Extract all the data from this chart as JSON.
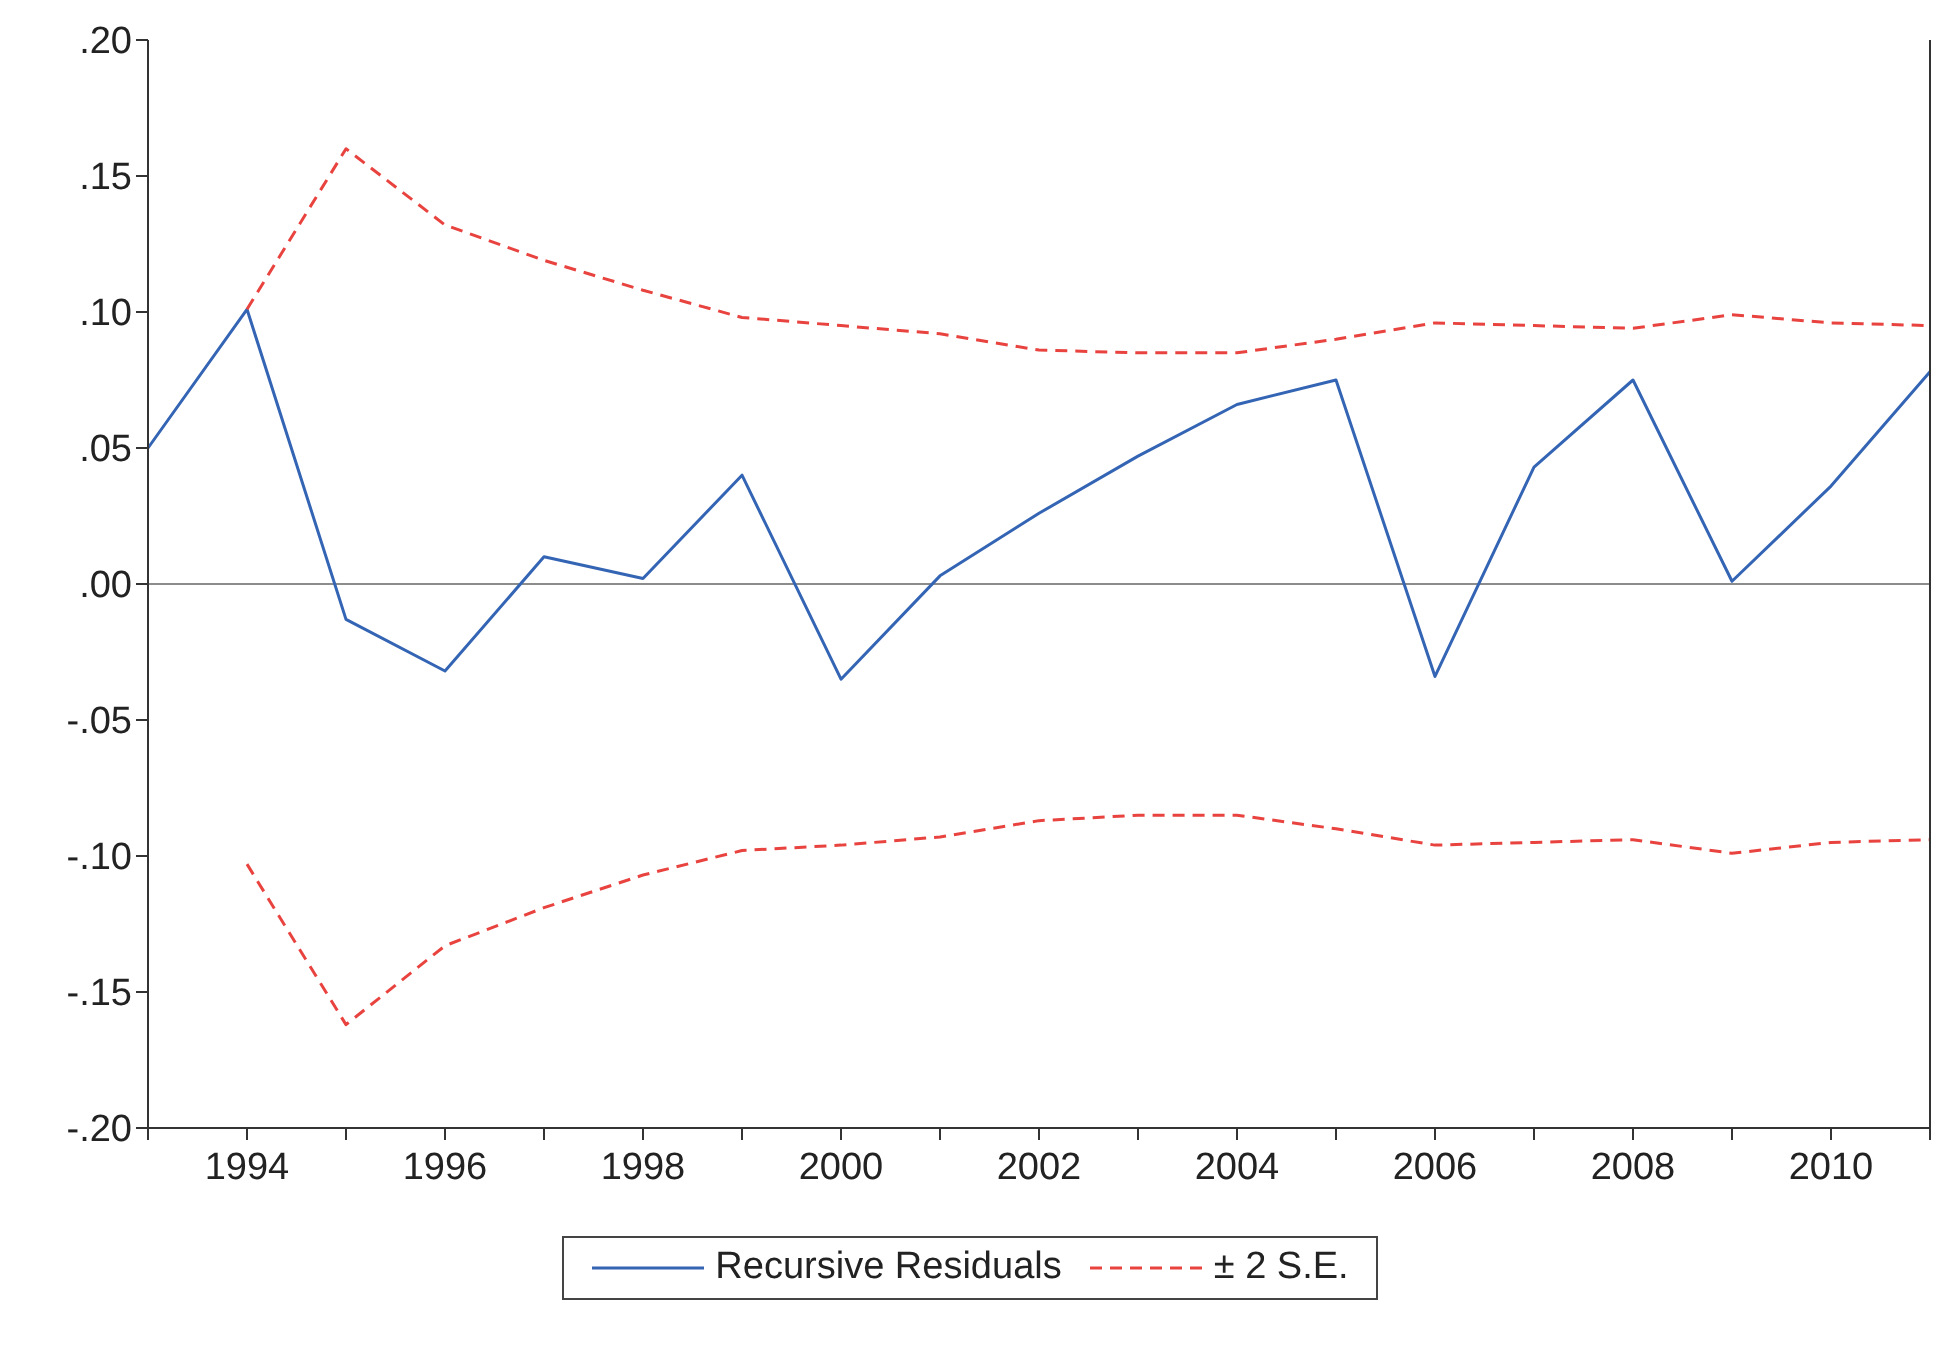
{
  "chart_data": {
    "type": "line",
    "categories": [
      null,
      "1994",
      null,
      "1996",
      null,
      "1998",
      null,
      "2000",
      null,
      "2002",
      null,
      "2004",
      null,
      "2006",
      null,
      "2008",
      null,
      "2010",
      null
    ],
    "series": [
      {
        "name": "Recursive Residuals",
        "color": "#3465b4",
        "line_style": "solid",
        "values": [
          0.05,
          0.101,
          -0.013,
          -0.032,
          0.01,
          0.002,
          0.04,
          -0.035,
          0.003,
          0.026,
          0.047,
          0.066,
          0.075,
          -0.034,
          0.043,
          0.075,
          0.001,
          0.036,
          0.078
        ]
      },
      {
        "name": "± 2 S.E.",
        "color": "#e8433f",
        "line_style": "dashed",
        "values": [
          null,
          0.101,
          0.16,
          0.132,
          0.119,
          0.108,
          0.098,
          0.095,
          0.092,
          0.086,
          0.085,
          0.085,
          0.09,
          0.096,
          0.095,
          0.094,
          0.099,
          0.096,
          0.095
        ]
      },
      {
        "color": "#e8433f",
        "line_style": "dashed",
        "values": [
          null,
          -0.103,
          -0.162,
          -0.133,
          -0.119,
          -0.107,
          -0.098,
          -0.096,
          -0.093,
          -0.087,
          -0.085,
          -0.085,
          -0.09,
          -0.096,
          -0.095,
          -0.094,
          -0.099,
          -0.095,
          -0.094
        ]
      }
    ],
    "ylim": [
      -0.2,
      0.2
    ],
    "yticks": [
      {
        "value": -0.2,
        "label": "-.20"
      },
      {
        "value": -0.15,
        "label": "-.15"
      },
      {
        "value": -0.1,
        "label": "-.10"
      },
      {
        "value": -0.05,
        "label": "-.05"
      },
      {
        "value": 0,
        "label": ".00"
      },
      {
        "value": 0.05,
        "label": ".05"
      },
      {
        "value": 0.1,
        "label": ".10"
      },
      {
        "value": 0.15,
        "label": ".15"
      },
      {
        "value": 0.2,
        "label": ".20"
      }
    ],
    "ref_lines": [
      {
        "axis": "y",
        "value": 0,
        "color": "#8c8c8c"
      }
    ],
    "grid": false,
    "legend": "bottom",
    "marker": "none"
  }
}
